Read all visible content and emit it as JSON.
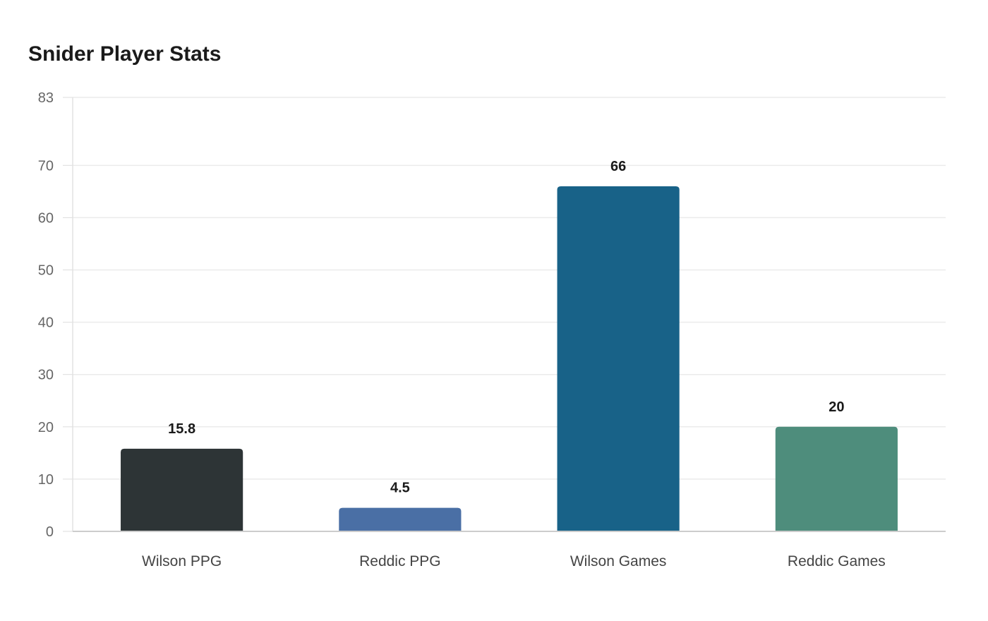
{
  "chart_data": {
    "type": "bar",
    "title": "Snider Player Stats",
    "xlabel": "",
    "ylabel": "",
    "categories": [
      "Wilson PPG",
      "Reddic PPG",
      "Wilson Games",
      "Reddic Games"
    ],
    "values": [
      15.8,
      4.5,
      66,
      20
    ],
    "data_labels": [
      "15.8",
      "4.5",
      "66",
      "20"
    ],
    "colors": [
      "#2d3436",
      "#4a6fa5",
      "#186288",
      "#4e8d7c"
    ],
    "ylim": [
      0,
      83
    ],
    "yticks": [
      0,
      10,
      20,
      30,
      40,
      50,
      60,
      70,
      83
    ],
    "grid": true,
    "legend": "none"
  }
}
